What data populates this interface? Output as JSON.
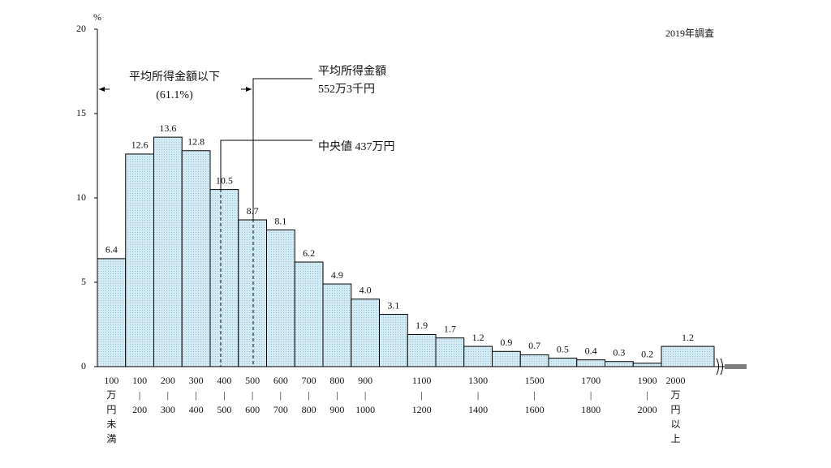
{
  "chart_data": {
    "type": "bar",
    "survey_note": "2019年調査",
    "y_axis_label": "%",
    "annotations": {
      "below_mean": "平均所得金額以下",
      "below_mean_share": "(61.1%)",
      "mean_title": "平均所得金額",
      "mean_value": "552万3千円",
      "median": "中央値 437万円"
    },
    "categories": [
      [
        "100",
        "万",
        "円",
        "未",
        "満"
      ],
      [
        "100",
        "|",
        "200"
      ],
      [
        "200",
        "|",
        "300"
      ],
      [
        "300",
        "|",
        "400"
      ],
      [
        "400",
        "|",
        "500"
      ],
      [
        "500",
        "|",
        "600"
      ],
      [
        "600",
        "|",
        "700"
      ],
      [
        "700",
        "|",
        "800"
      ],
      [
        "800",
        "|",
        "900"
      ],
      [
        "900",
        "|",
        "1000"
      ],
      null,
      [
        "1100",
        "|",
        "1200"
      ],
      null,
      [
        "1300",
        "|",
        "1400"
      ],
      null,
      [
        "1500",
        "|",
        "1600"
      ],
      null,
      [
        "1700",
        "|",
        "1800"
      ],
      null,
      [
        "1900",
        "|",
        "2000"
      ],
      [
        "2000",
        "万",
        "円",
        "以",
        "上"
      ]
    ],
    "values": [
      6.4,
      12.6,
      13.6,
      12.8,
      10.5,
      8.7,
      8.1,
      6.2,
      4.9,
      4.0,
      3.1,
      1.9,
      1.7,
      1.2,
      0.9,
      0.7,
      0.5,
      0.4,
      0.3,
      0.2,
      1.2
    ],
    "value_labels": [
      "6.4",
      "12.6",
      "13.6",
      "12.8",
      "10.5",
      "8.7",
      "8.1",
      "6.2",
      "4.9",
      "4.0",
      "3.1",
      "1.9",
      "1.7",
      "1.2",
      "0.9",
      "0.7",
      "0.5",
      "0.4",
      "0.3",
      "0.2",
      "1.2"
    ],
    "color": "#d3ebf5",
    "ylim": [
      0,
      20
    ],
    "yticks": [
      0,
      5,
      10,
      15,
      20
    ],
    "grid": false
  }
}
